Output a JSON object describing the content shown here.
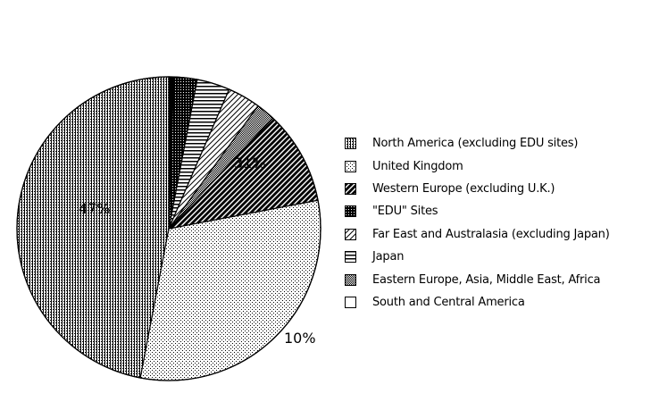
{
  "chart_data": {
    "type": "pie",
    "title": "",
    "slices": [
      {
        "label": "North America (excluding EDU sites)",
        "value": 47,
        "pattern": "vlines"
      },
      {
        "label": "United Kingdom",
        "value": 31,
        "pattern": "dots"
      },
      {
        "label": "Western Europe (excluding U.K.)",
        "value": 10,
        "pattern": "darkdiag"
      },
      {
        "label": "Eastern Europe, Asia, Middle East, Africa",
        "value": 2,
        "pattern": "checker"
      },
      {
        "label": "Far East and Australasia (excluding Japan)",
        "value": 3.5,
        "pattern": "diag"
      },
      {
        "label": "Japan",
        "value": 3.5,
        "pattern": "hlines"
      },
      {
        "label": "\"EDU\" Sites",
        "value": 2.5,
        "pattern": "dense"
      },
      {
        "label": "South and Central America",
        "value": 0.5,
        "pattern": "solid"
      }
    ],
    "data_labels": [
      {
        "text": "47%",
        "slice": 0
      },
      {
        "text": "31%",
        "slice": 1
      },
      {
        "text": "10%",
        "slice": 2
      }
    ],
    "legend": {
      "placement": "right",
      "entries": [
        {
          "label": "North America (excluding EDU sites)",
          "pattern": "vlines"
        },
        {
          "label": "United Kingdom",
          "pattern": "dots"
        },
        {
          "label": "Western Europe (excluding U.K.)",
          "pattern": "darkdiag"
        },
        {
          "label": "\"EDU\" Sites",
          "pattern": "dense"
        },
        {
          "label": "Far East and Australasia (excluding Japan)",
          "pattern": "diag"
        },
        {
          "label": "Japan",
          "pattern": "hlines"
        },
        {
          "label": "Eastern Europe, Asia, Middle East, Africa",
          "pattern": "checker"
        },
        {
          "label": "South and Central America",
          "pattern": "white"
        }
      ]
    },
    "colors": {
      "ink": "#000000",
      "background": "#ffffff"
    }
  }
}
